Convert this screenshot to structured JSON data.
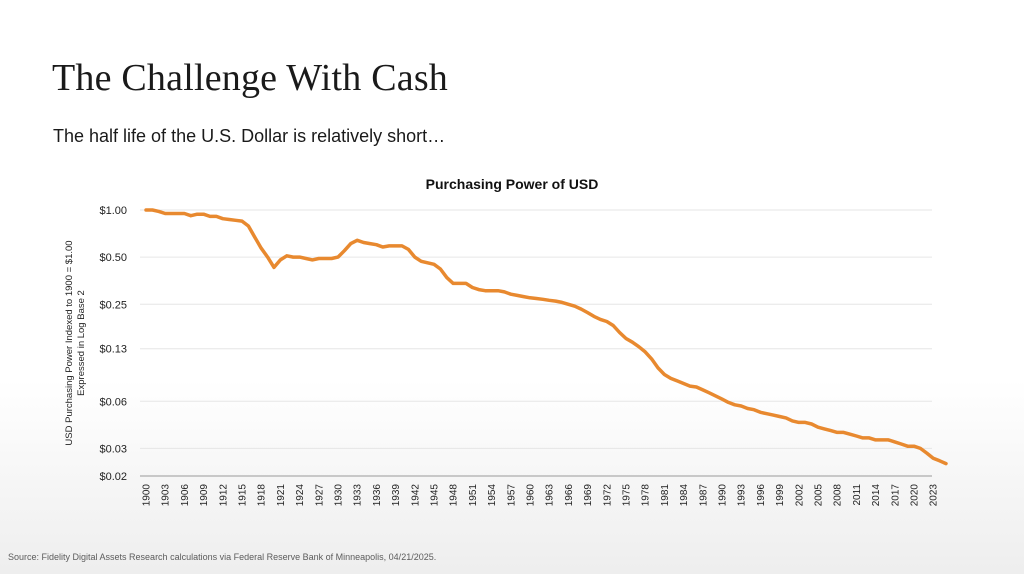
{
  "slide": {
    "title": "The Challenge With Cash",
    "subtitle": "The half life of the U.S. Dollar is relatively short…",
    "source": "Source: Fidelity Digital Assets Research calculations via Federal Reserve Bank of Minneapolis, 04/21/2025."
  },
  "colors": {
    "line": "#E8892F",
    "grid": "#e6e6e6",
    "axis": "#9a9a9a"
  },
  "chart_data": {
    "type": "line",
    "title": "Purchasing Power of USD",
    "xlabel": "",
    "ylabel_line1": "USD Purchasing Power Indexed to 1900 = $1.00",
    "ylabel_line2": "Expressed in Log Base 2",
    "y_scale": "log2",
    "ylim": [
      0.02,
      1.0
    ],
    "y_ticks": [
      1.0,
      0.5,
      0.25,
      0.13,
      0.06,
      0.03,
      0.02
    ],
    "y_tick_labels": [
      "$1.00",
      "$0.50",
      "$0.25",
      "$0.13",
      "$0.06",
      "$0.03",
      "$0.02"
    ],
    "x_ticks": [
      1900,
      1903,
      1906,
      1909,
      1912,
      1915,
      1918,
      1921,
      1924,
      1927,
      1930,
      1933,
      1936,
      1939,
      1942,
      1945,
      1948,
      1951,
      1954,
      1957,
      1960,
      1963,
      1966,
      1969,
      1972,
      1975,
      1978,
      1981,
      1984,
      1987,
      1990,
      1993,
      1996,
      1999,
      2002,
      2005,
      2008,
      2011,
      2014,
      2017,
      2020,
      2023
    ],
    "xlim": [
      1900,
      2025
    ],
    "grid": true,
    "series": [
      {
        "name": "Purchasing Power of USD",
        "x": [
          1900,
          1901,
          1902,
          1903,
          1904,
          1905,
          1906,
          1907,
          1908,
          1909,
          1910,
          1911,
          1912,
          1913,
          1914,
          1915,
          1916,
          1917,
          1918,
          1919,
          1920,
          1921,
          1922,
          1923,
          1924,
          1925,
          1926,
          1927,
          1928,
          1929,
          1930,
          1931,
          1932,
          1933,
          1934,
          1935,
          1936,
          1937,
          1938,
          1939,
          1940,
          1941,
          1942,
          1943,
          1944,
          1945,
          1946,
          1947,
          1948,
          1949,
          1950,
          1951,
          1952,
          1953,
          1954,
          1955,
          1956,
          1957,
          1958,
          1959,
          1960,
          1961,
          1962,
          1963,
          1964,
          1965,
          1966,
          1967,
          1968,
          1969,
          1970,
          1971,
          1972,
          1973,
          1974,
          1975,
          1976,
          1977,
          1978,
          1979,
          1980,
          1981,
          1982,
          1983,
          1984,
          1985,
          1986,
          1987,
          1988,
          1989,
          1990,
          1991,
          1992,
          1993,
          1994,
          1995,
          1996,
          1997,
          1998,
          1999,
          2000,
          2001,
          2002,
          2003,
          2004,
          2005,
          2006,
          2007,
          2008,
          2009,
          2010,
          2011,
          2012,
          2013,
          2014,
          2015,
          2016,
          2017,
          2018,
          2019,
          2020,
          2021,
          2022,
          2023,
          2024,
          2025
        ],
        "values": [
          1.0,
          1.0,
          0.98,
          0.95,
          0.95,
          0.95,
          0.95,
          0.92,
          0.94,
          0.94,
          0.91,
          0.91,
          0.88,
          0.87,
          0.86,
          0.85,
          0.79,
          0.67,
          0.57,
          0.5,
          0.43,
          0.48,
          0.51,
          0.5,
          0.5,
          0.49,
          0.48,
          0.49,
          0.49,
          0.49,
          0.5,
          0.55,
          0.61,
          0.64,
          0.62,
          0.61,
          0.6,
          0.58,
          0.59,
          0.59,
          0.59,
          0.56,
          0.5,
          0.47,
          0.46,
          0.45,
          0.42,
          0.37,
          0.34,
          0.34,
          0.34,
          0.32,
          0.31,
          0.305,
          0.305,
          0.305,
          0.3,
          0.29,
          0.285,
          0.28,
          0.275,
          0.272,
          0.269,
          0.265,
          0.262,
          0.257,
          0.25,
          0.243,
          0.233,
          0.221,
          0.209,
          0.2,
          0.194,
          0.183,
          0.165,
          0.151,
          0.143,
          0.134,
          0.124,
          0.112,
          0.098,
          0.089,
          0.084,
          0.081,
          0.078,
          0.075,
          0.074,
          0.071,
          0.068,
          0.065,
          0.062,
          0.059,
          0.057,
          0.056,
          0.054,
          0.053,
          0.051,
          0.05,
          0.049,
          0.048,
          0.047,
          0.045,
          0.044,
          0.044,
          0.043,
          0.041,
          0.04,
          0.039,
          0.038,
          0.038,
          0.037,
          0.036,
          0.035,
          0.035,
          0.034,
          0.034,
          0.034,
          0.033,
          0.032,
          0.031,
          0.031,
          0.03,
          0.028,
          0.026,
          0.025,
          0.024
        ]
      }
    ]
  }
}
